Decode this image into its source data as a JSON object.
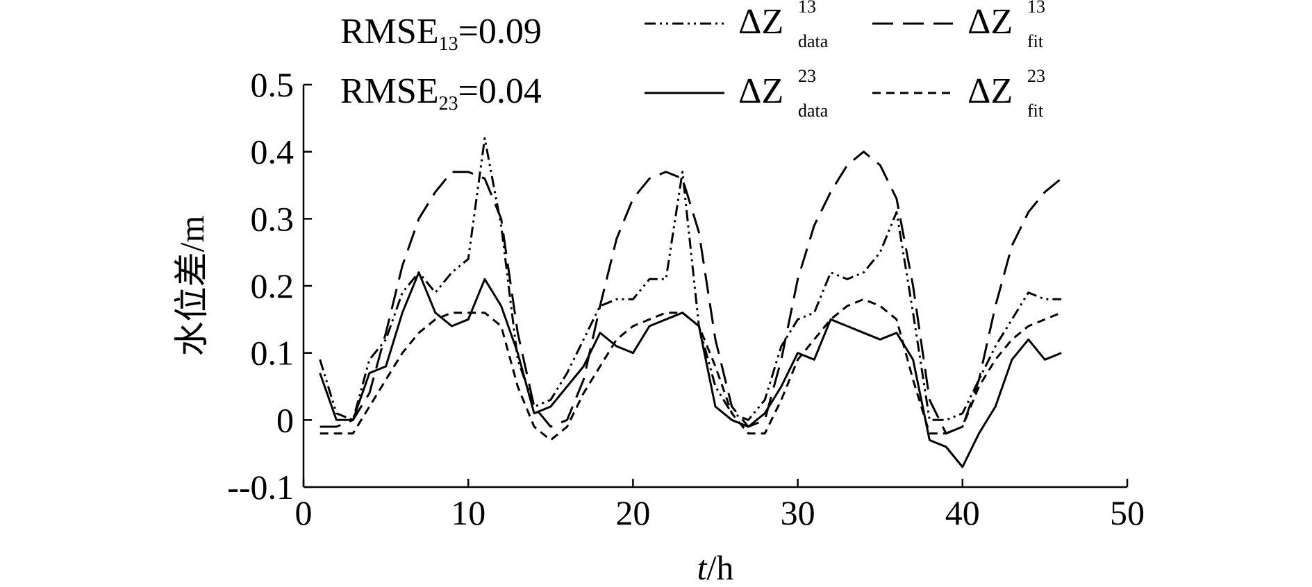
{
  "chart_data": {
    "type": "line",
    "xlabel": {
      "italic": "t",
      "rest": "/h"
    },
    "ylabel": "水位差/m",
    "xlim": [
      0,
      50
    ],
    "ylim": [
      -0.1,
      0.5
    ],
    "xticks": [
      "0",
      "10",
      "20",
      "30",
      "40",
      "50"
    ],
    "yticks": [
      "--0.1",
      "0",
      "0.1",
      "0.2",
      "0.3",
      "0.4",
      "0.5"
    ],
    "grid": false,
    "legend_position": "top",
    "annotations": [
      {
        "main": "RMSE",
        "sub": "13",
        "value": "=0.09"
      },
      {
        "main": "RMSE",
        "sub": "23",
        "value": "=0.04"
      }
    ],
    "x": [
      1,
      2,
      3,
      4,
      5,
      6,
      7,
      8,
      9,
      10,
      11,
      12,
      13,
      14,
      15,
      16,
      17,
      18,
      19,
      20,
      21,
      22,
      23,
      24,
      25,
      26,
      27,
      28,
      29,
      30,
      31,
      32,
      33,
      34,
      35,
      36,
      37,
      38,
      39,
      40,
      41,
      42,
      43,
      44,
      45,
      46
    ],
    "series": [
      {
        "name": "ΔZ13data",
        "legend": {
          "main": "ΔZ",
          "sup": "13",
          "sub": "data"
        },
        "dash": "dashdot",
        "values": [
          0.09,
          0.01,
          0.0,
          0.09,
          0.12,
          0.19,
          0.22,
          0.19,
          0.22,
          0.24,
          0.42,
          0.29,
          0.09,
          0.02,
          0.03,
          0.07,
          0.12,
          0.17,
          0.18,
          0.18,
          0.21,
          0.21,
          0.37,
          0.14,
          0.05,
          0.01,
          0.0,
          0.03,
          0.11,
          0.15,
          0.16,
          0.22,
          0.21,
          0.22,
          0.25,
          0.31,
          0.16,
          0.0,
          0.0,
          0.01,
          0.06,
          0.11,
          0.15,
          0.19,
          0.18,
          0.18
        ]
      },
      {
        "name": "ΔZ13fit",
        "legend": {
          "main": "ΔZ",
          "sup": "13",
          "sub": "fit"
        },
        "dash": "longdash",
        "values": [
          -0.01,
          -0.01,
          0.0,
          0.04,
          0.13,
          0.23,
          0.3,
          0.34,
          0.37,
          0.37,
          0.36,
          0.3,
          0.13,
          0.02,
          -0.01,
          0.0,
          0.06,
          0.17,
          0.27,
          0.33,
          0.36,
          0.37,
          0.36,
          0.28,
          0.12,
          0.02,
          -0.01,
          0.0,
          0.09,
          0.21,
          0.29,
          0.34,
          0.38,
          0.4,
          0.38,
          0.33,
          0.2,
          0.03,
          -0.02,
          -0.01,
          0.06,
          0.17,
          0.26,
          0.31,
          0.34,
          0.36
        ]
      },
      {
        "name": "ΔZ23data",
        "legend": {
          "main": "ΔZ",
          "sup": "23",
          "sub": "data"
        },
        "dash": "solid",
        "values": [
          0.07,
          0.0,
          0.0,
          0.07,
          0.08,
          0.16,
          0.22,
          0.16,
          0.14,
          0.15,
          0.21,
          0.17,
          0.1,
          0.01,
          0.02,
          0.05,
          0.08,
          0.13,
          0.11,
          0.1,
          0.14,
          0.15,
          0.16,
          0.14,
          0.02,
          0.0,
          -0.01,
          0.01,
          0.05,
          0.1,
          0.09,
          0.15,
          0.14,
          0.13,
          0.12,
          0.13,
          0.09,
          -0.03,
          -0.04,
          -0.07,
          -0.02,
          0.02,
          0.09,
          0.12,
          0.09,
          0.1
        ]
      },
      {
        "name": "ΔZ23fit",
        "legend": {
          "main": "ΔZ",
          "sup": "23",
          "sub": "fit"
        },
        "dash": "shortdash",
        "values": [
          -0.02,
          -0.02,
          -0.02,
          0.02,
          0.06,
          0.1,
          0.13,
          0.15,
          0.16,
          0.16,
          0.16,
          0.14,
          0.05,
          -0.01,
          -0.03,
          -0.01,
          0.04,
          0.08,
          0.12,
          0.14,
          0.15,
          0.16,
          0.16,
          0.14,
          0.08,
          0.01,
          -0.02,
          -0.02,
          0.03,
          0.09,
          0.12,
          0.15,
          0.17,
          0.18,
          0.17,
          0.15,
          0.06,
          -0.02,
          -0.02,
          -0.01,
          0.05,
          0.09,
          0.12,
          0.14,
          0.15,
          0.16
        ]
      }
    ]
  }
}
